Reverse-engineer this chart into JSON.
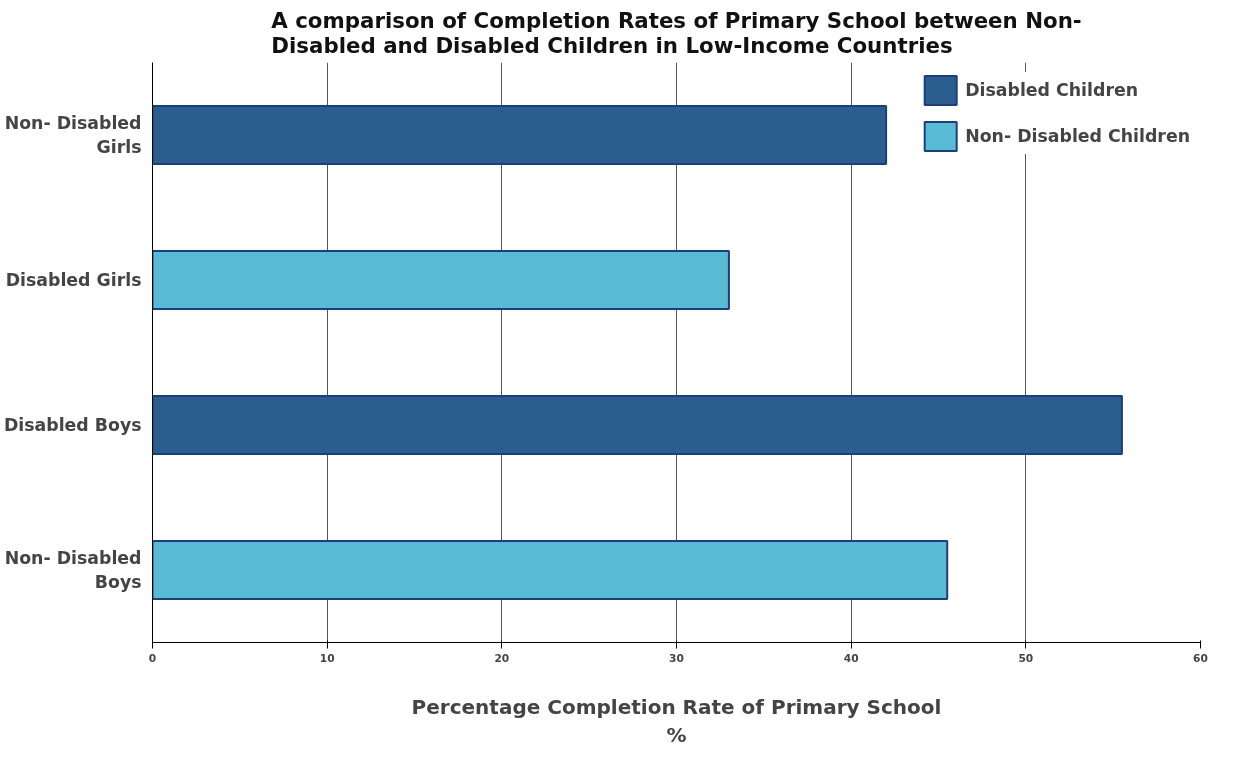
{
  "chart_data": {
    "type": "bar",
    "orientation": "horizontal",
    "title": "A comparison of Completion Rates of Primary School between Non-\nDisabled and Disabled Children in Low-Income Countries",
    "xlabel": "Percentage Completion Rate of Primary School\n%",
    "categories": [
      "Non- Disabled\nGirls",
      "Disabled Girls",
      "Disabled Boys",
      "Non- Disabled\nBoys"
    ],
    "series": [
      {
        "name": "Disabled Children",
        "color": "#2c5d8f",
        "values": [
          42,
          null,
          55.5,
          null
        ]
      },
      {
        "name": "Non- Disabled Children",
        "color": "#5bbad3",
        "values": [
          null,
          33,
          null,
          45.5
        ]
      }
    ],
    "xlim": [
      0,
      60
    ],
    "xticks": [
      0,
      10,
      20,
      30,
      40,
      50,
      60
    ],
    "grid": "x",
    "legend": "top right"
  }
}
